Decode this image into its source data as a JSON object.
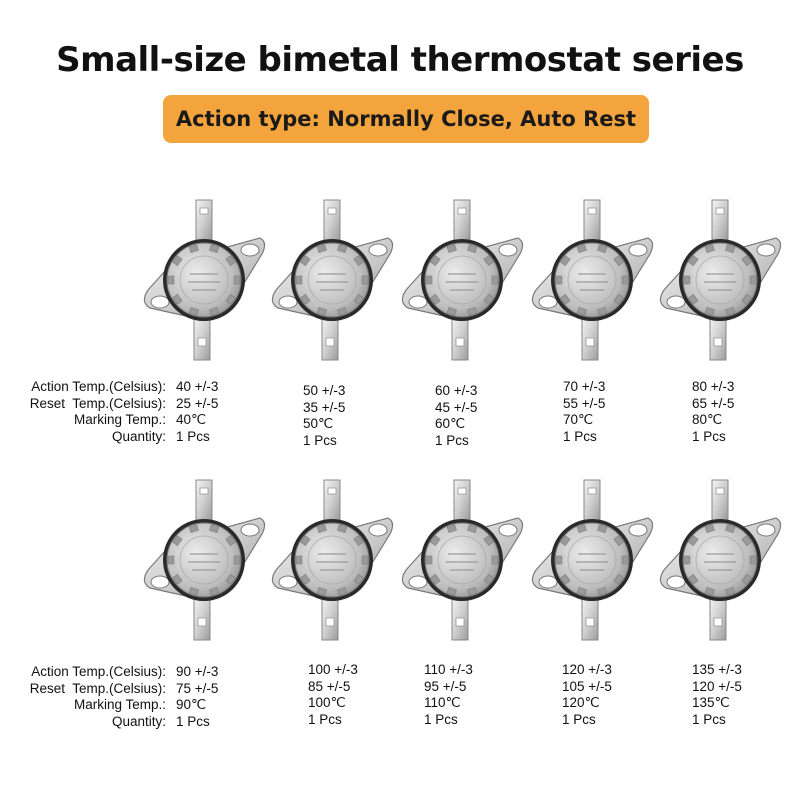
{
  "title": "Small-size bimetal thermostat series",
  "banner": "Action type: Normally Close, Auto Rest",
  "labels": {
    "action": "Action Temp.(Celsius):",
    "reset": "Reset  Temp.(Celsius):",
    "marking": "Marking Temp.:",
    "quantity": "Quantity:"
  },
  "rows": [
    {
      "items": [
        {
          "action": "40 +/-3",
          "reset": "25 +/-5",
          "marking": "40℃",
          "quantity": "1 Pcs"
        },
        {
          "action": "50 +/-3",
          "reset": "35 +/-5",
          "marking": "50℃",
          "quantity": "1 Pcs"
        },
        {
          "action": "60 +/-3",
          "reset": "45 +/-5",
          "marking": "60℃",
          "quantity": "1 Pcs"
        },
        {
          "action": "70 +/-3",
          "reset": "55 +/-5",
          "marking": "70℃",
          "quantity": "1 Pcs"
        },
        {
          "action": "80 +/-3",
          "reset": "65 +/-5",
          "marking": "80℃",
          "quantity": "1 Pcs"
        }
      ]
    },
    {
      "items": [
        {
          "action": "90 +/-3",
          "reset": "75 +/-5",
          "marking": "90℃",
          "quantity": "1 Pcs"
        },
        {
          "action": "100 +/-3",
          "reset": "85 +/-5",
          "marking": "100℃",
          "quantity": "1 Pcs"
        },
        {
          "action": "110 +/-3",
          "reset": "95 +/-5",
          "marking": "110℃",
          "quantity": "1 Pcs"
        },
        {
          "action": "120 +/-3",
          "reset": "105 +/-5",
          "marking": "120℃",
          "quantity": "1 Pcs"
        },
        {
          "action": "135 +/-3",
          "reset": "120 +/-5",
          "marking": "135℃",
          "quantity": "1 Pcs"
        }
      ]
    }
  ]
}
